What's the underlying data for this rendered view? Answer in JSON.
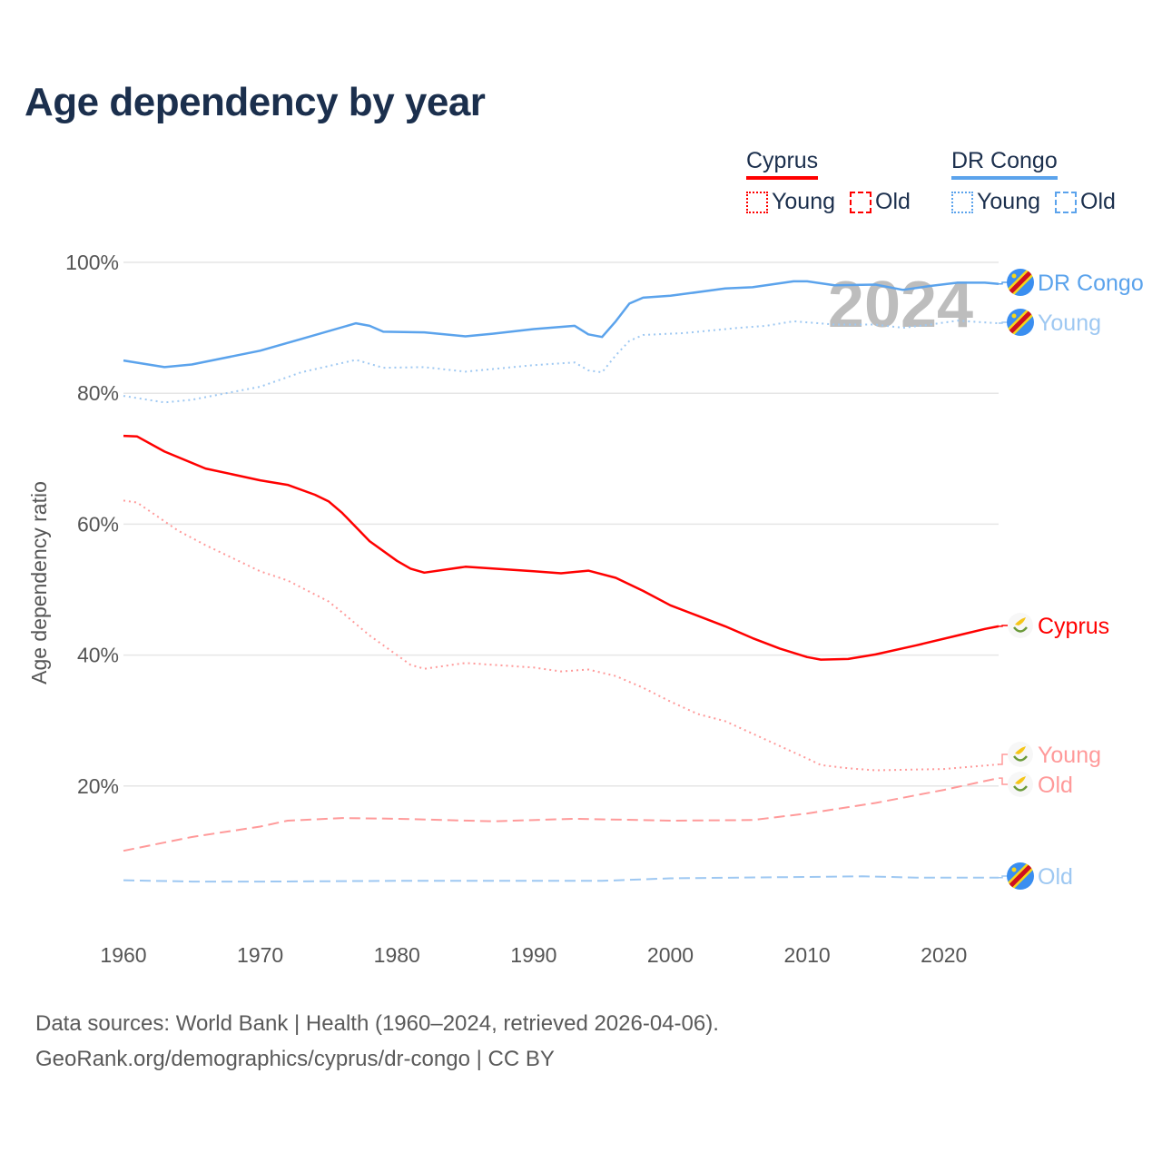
{
  "title": "Age dependency by year",
  "legend": {
    "groups": [
      {
        "name": "Cyprus",
        "color": "#ff0000",
        "items": [
          {
            "label": "Young",
            "style": "dotted"
          },
          {
            "label": "Old",
            "style": "dashed"
          }
        ]
      },
      {
        "name": "DR Congo",
        "color": "#5ba3ec",
        "items": [
          {
            "label": "Young",
            "style": "dotted"
          },
          {
            "label": "Old",
            "style": "dashed"
          }
        ]
      }
    ]
  },
  "footer": {
    "line1": "Data sources: World Bank | Health (1960–2024, retrieved 2026-04-06).",
    "line2": "GeoRank.org/demographics/cyprus/dr-congo | CC BY"
  },
  "chart_data": {
    "type": "line",
    "title": "Age dependency by year",
    "xlabel": "",
    "ylabel": "Age dependency ratio",
    "xlim": [
      1960,
      2024
    ],
    "ylim": [
      0,
      100
    ],
    "x_ticks": [
      "1960",
      "1970",
      "1980",
      "1990",
      "2000",
      "2010",
      "2020"
    ],
    "y_ticks": [
      "20%",
      "40%",
      "60%",
      "80%",
      "100%"
    ],
    "y_tick_values": [
      20,
      40,
      60,
      80,
      100
    ],
    "year_watermark": "2024",
    "grid": true,
    "series": [
      {
        "name": "DR Congo",
        "label": "DR Congo",
        "country": "DR Congo",
        "color": "#5ba3ec",
        "style": "solid",
        "points": [
          [
            1960,
            85.0
          ],
          [
            1963,
            84.0
          ],
          [
            1965,
            84.4
          ],
          [
            1970,
            86.5
          ],
          [
            1973,
            88.3
          ],
          [
            1977,
            90.7
          ],
          [
            1978,
            90.3
          ],
          [
            1979,
            89.4
          ],
          [
            1982,
            89.3
          ],
          [
            1985,
            88.7
          ],
          [
            1987,
            89.1
          ],
          [
            1990,
            89.8
          ],
          [
            1993,
            90.3
          ],
          [
            1994,
            89.0
          ],
          [
            1995,
            88.6
          ],
          [
            1996,
            91.0
          ],
          [
            1997,
            93.7
          ],
          [
            1998,
            94.6
          ],
          [
            2000,
            94.9
          ],
          [
            2004,
            96.0
          ],
          [
            2006,
            96.2
          ],
          [
            2009,
            97.1
          ],
          [
            2010,
            97.1
          ],
          [
            2012,
            96.5
          ],
          [
            2015,
            96.6
          ],
          [
            2017,
            95.8
          ],
          [
            2019,
            96.4
          ],
          [
            2021,
            96.9
          ],
          [
            2023,
            96.9
          ],
          [
            2024,
            96.7
          ]
        ]
      },
      {
        "name": "DR Congo Young",
        "label": "Young",
        "country": "DR Congo",
        "color": "#9ec8f2",
        "style": "dotted",
        "points": [
          [
            1960,
            79.6
          ],
          [
            1963,
            78.6
          ],
          [
            1965,
            79.0
          ],
          [
            1970,
            81.0
          ],
          [
            1973,
            83.2
          ],
          [
            1977,
            85.1
          ],
          [
            1979,
            83.9
          ],
          [
            1982,
            84.0
          ],
          [
            1985,
            83.3
          ],
          [
            1990,
            84.3
          ],
          [
            1993,
            84.7
          ],
          [
            1994,
            83.5
          ],
          [
            1995,
            83.2
          ],
          [
            1996,
            85.8
          ],
          [
            1997,
            88.0
          ],
          [
            1998,
            88.9
          ],
          [
            2001,
            89.2
          ],
          [
            2005,
            90.0
          ],
          [
            2007,
            90.3
          ],
          [
            2009,
            91.0
          ],
          [
            2012,
            90.5
          ],
          [
            2015,
            90.5
          ],
          [
            2017,
            90.0
          ],
          [
            2019,
            90.5
          ],
          [
            2021,
            91.1
          ],
          [
            2024,
            90.7
          ]
        ]
      },
      {
        "name": "DR Congo Old",
        "label": "Old",
        "country": "DR Congo",
        "color": "#9ec8f2",
        "style": "dashed",
        "points": [
          [
            1960,
            5.6
          ],
          [
            1965,
            5.4
          ],
          [
            1970,
            5.4
          ],
          [
            1980,
            5.5
          ],
          [
            1990,
            5.5
          ],
          [
            1995,
            5.5
          ],
          [
            2000,
            5.9
          ],
          [
            2005,
            6.0
          ],
          [
            2010,
            6.1
          ],
          [
            2014,
            6.2
          ],
          [
            2018,
            6.0
          ],
          [
            2024,
            6.0
          ]
        ]
      },
      {
        "name": "Cyprus",
        "label": "Cyprus",
        "country": "Cyprus",
        "color": "#ff0000",
        "style": "solid",
        "points": [
          [
            1960,
            73.5
          ],
          [
            1961,
            73.4
          ],
          [
            1963,
            71.1
          ],
          [
            1966,
            68.5
          ],
          [
            1970,
            66.7
          ],
          [
            1972,
            66.0
          ],
          [
            1974,
            64.5
          ],
          [
            1975,
            63.5
          ],
          [
            1976,
            61.7
          ],
          [
            1978,
            57.4
          ],
          [
            1980,
            54.4
          ],
          [
            1981,
            53.2
          ],
          [
            1982,
            52.6
          ],
          [
            1985,
            53.5
          ],
          [
            1990,
            52.8
          ],
          [
            1992,
            52.5
          ],
          [
            1994,
            52.9
          ],
          [
            1996,
            51.8
          ],
          [
            1998,
            49.8
          ],
          [
            2000,
            47.6
          ],
          [
            2002,
            46.0
          ],
          [
            2004,
            44.4
          ],
          [
            2006,
            42.6
          ],
          [
            2008,
            41.0
          ],
          [
            2010,
            39.7
          ],
          [
            2011,
            39.3
          ],
          [
            2013,
            39.4
          ],
          [
            2015,
            40.1
          ],
          [
            2018,
            41.5
          ],
          [
            2021,
            43.0
          ],
          [
            2023,
            44.0
          ],
          [
            2024,
            44.4
          ]
        ]
      },
      {
        "name": "Cyprus Young",
        "label": "Young",
        "country": "Cyprus",
        "color": "#ff9a9a",
        "style": "dotted",
        "points": [
          [
            1960,
            63.6
          ],
          [
            1961,
            63.3
          ],
          [
            1964,
            59.0
          ],
          [
            1966,
            56.8
          ],
          [
            1970,
            52.8
          ],
          [
            1972,
            51.4
          ],
          [
            1975,
            48.2
          ],
          [
            1976,
            46.5
          ],
          [
            1978,
            43.0
          ],
          [
            1980,
            40.0
          ],
          [
            1981,
            38.5
          ],
          [
            1982,
            37.9
          ],
          [
            1985,
            38.8
          ],
          [
            1990,
            38.1
          ],
          [
            1992,
            37.5
          ],
          [
            1994,
            37.8
          ],
          [
            1996,
            36.8
          ],
          [
            1998,
            35.0
          ],
          [
            2000,
            32.9
          ],
          [
            2002,
            31.0
          ],
          [
            2004,
            29.9
          ],
          [
            2006,
            28.0
          ],
          [
            2008,
            26.1
          ],
          [
            2010,
            24.2
          ],
          [
            2011,
            23.2
          ],
          [
            2013,
            22.7
          ],
          [
            2015,
            22.4
          ],
          [
            2020,
            22.6
          ],
          [
            2024,
            23.3
          ]
        ]
      },
      {
        "name": "Cyprus Old",
        "label": "Old",
        "country": "Cyprus",
        "color": "#ff9a9a",
        "style": "dashed",
        "points": [
          [
            1960,
            10.1
          ],
          [
            1965,
            12.2
          ],
          [
            1970,
            13.8
          ],
          [
            1972,
            14.7
          ],
          [
            1976,
            15.1
          ],
          [
            1980,
            15.0
          ],
          [
            1987,
            14.6
          ],
          [
            1993,
            15.0
          ],
          [
            2000,
            14.7
          ],
          [
            2006,
            14.8
          ],
          [
            2010,
            15.8
          ],
          [
            2015,
            17.4
          ],
          [
            2020,
            19.4
          ],
          [
            2024,
            21.2
          ]
        ]
      }
    ]
  }
}
